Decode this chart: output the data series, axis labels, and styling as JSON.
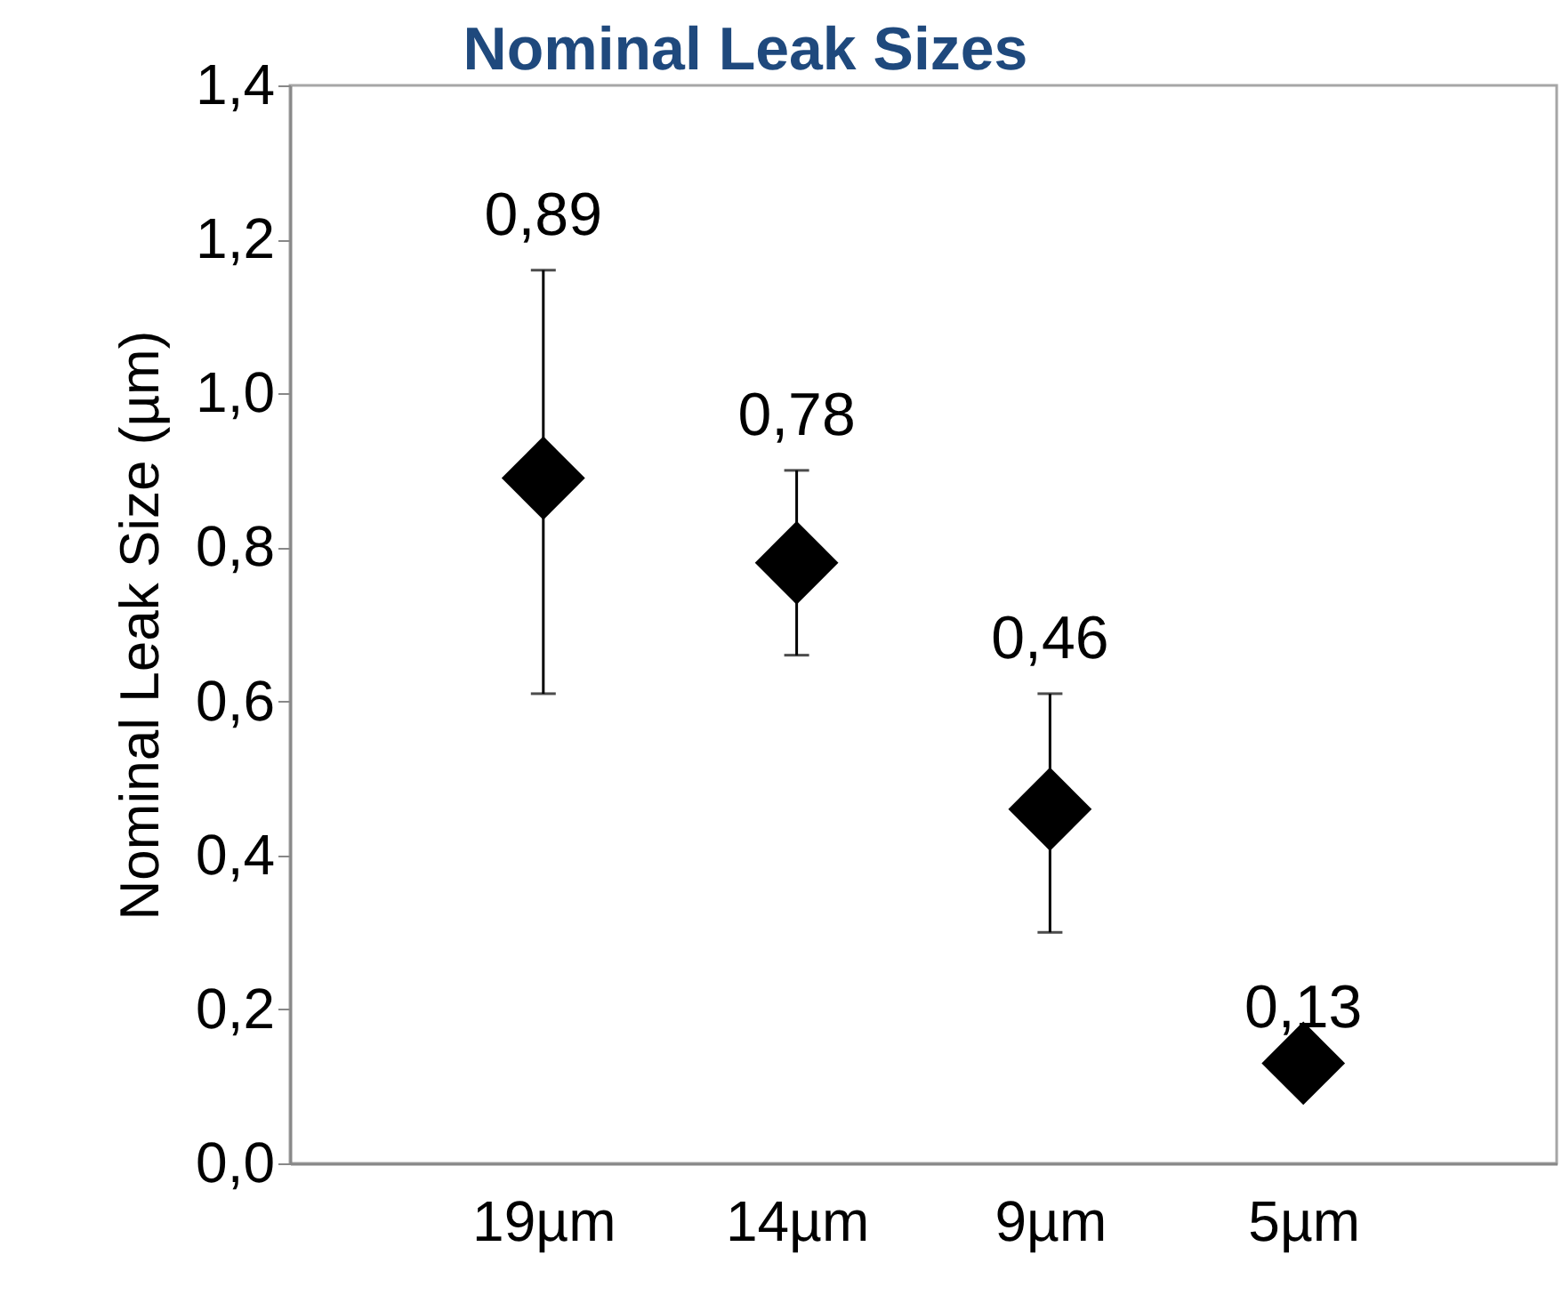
{
  "chart_data": {
    "type": "scatter",
    "title": "Nominal Leak Sizes",
    "ylabel": "Nominal Leak Size (µm)",
    "categories": [
      "19µm",
      "14µm",
      "9µm",
      "5µm"
    ],
    "values": [
      0.89,
      0.78,
      0.46,
      0.13
    ],
    "errors": [
      [
        0.61,
        1.16
      ],
      [
        0.66,
        0.9
      ],
      [
        0.3,
        0.61
      ],
      null
    ],
    "value_labels": [
      "0,89",
      "0,78",
      "0,46",
      "0,13"
    ],
    "color": "#000000",
    "marker": "diamond",
    "grid": false,
    "ylim": [
      0,
      1.4
    ],
    "yticks": [
      {
        "value": 0,
        "label": "0,0"
      },
      {
        "value": 0.2,
        "label": "0,2"
      },
      {
        "value": 0.4,
        "label": "0,4"
      },
      {
        "value": 0.6,
        "label": "0,6"
      },
      {
        "value": 0.8,
        "label": "0,8"
      },
      {
        "value": 1,
        "label": "1,0"
      },
      {
        "value": 1.2,
        "label": "1,2"
      },
      {
        "value": 1.4,
        "label": "1,4"
      }
    ]
  }
}
